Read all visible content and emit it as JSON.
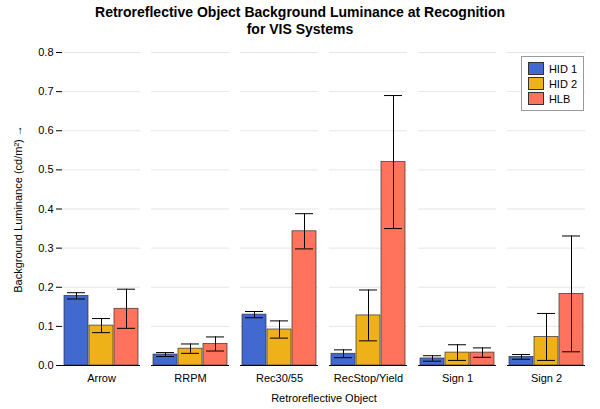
{
  "chart_data": {
    "type": "bar",
    "title": "Retroreflective Object Background Luminance at Recognition\nfor VIS Systems",
    "xlabel": "Retroreflective Object",
    "ylabel": "Background Luminance (cd/m²)",
    "categories": [
      "Arrow",
      "RRPM",
      "Rec30/55",
      "RecStop/Yield",
      "Sign 1",
      "Sign 2"
    ],
    "series": [
      {
        "name": "HID 1",
        "values": [
          0.178,
          0.028,
          0.13,
          0.03,
          0.018,
          0.022
        ],
        "errors": [
          0.008,
          0.005,
          0.008,
          0.01,
          0.007,
          0.006
        ]
      },
      {
        "name": "HID 2",
        "values": [
          0.102,
          0.043,
          0.092,
          0.128,
          0.033,
          0.073
        ],
        "errors": [
          0.018,
          0.012,
          0.022,
          0.065,
          0.02,
          0.06
        ]
      },
      {
        "name": "HLB",
        "values": [
          0.145,
          0.055,
          0.343,
          0.52,
          0.033,
          0.183
        ],
        "errors": [
          0.05,
          0.018,
          0.045,
          0.17,
          0.012,
          0.148
        ]
      }
    ],
    "ylim": [
      0,
      0.8
    ],
    "yticks": [
      {
        "value": 0,
        "label": "0.0"
      },
      0.1,
      0.2,
      0.3,
      0.4,
      0.5,
      0.6,
      0.7,
      0.8
    ],
    "grid": true,
    "legend": "upper right"
  }
}
